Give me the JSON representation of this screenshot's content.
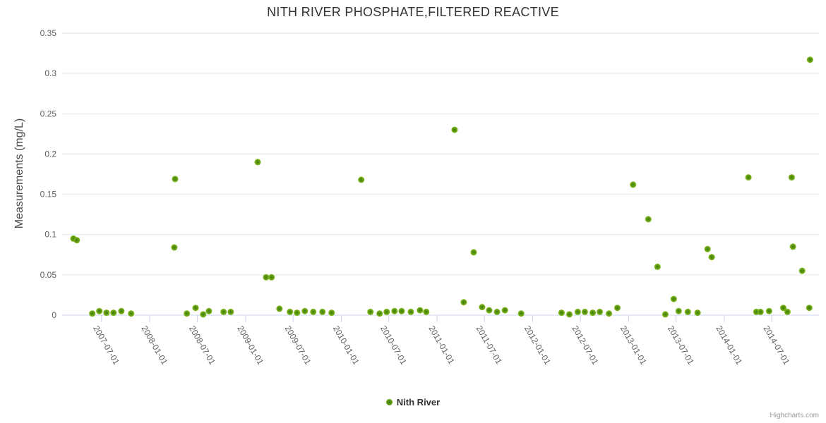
{
  "chart_data": {
    "type": "scatter",
    "title": "NITH RIVER PHOSPHATE,FILTERED REACTIVE",
    "xlabel": "",
    "ylabel": "Measurements (mg/L)",
    "grid": true,
    "legend_position": "bottom-center",
    "credits": "Highcharts.com",
    "colors": {
      "background": "#ffffff",
      "grid": "#e6e6e6",
      "axis_line": "#ccd6eb",
      "title": "#333333",
      "tick_label": "#606060",
      "marker": "#76b113",
      "marker_dark": "#3f7b0b",
      "legend_text": "#333333",
      "credits": "#999999"
    },
    "y_axis": {
      "min": 0,
      "max": 0.35,
      "tick_interval": 0.05,
      "tick_labels": [
        "0",
        "0.05",
        "0.1",
        "0.15",
        "0.2",
        "0.25",
        "0.3",
        "0.35"
      ]
    },
    "x_axis": {
      "min": "2007-02-01",
      "max": "2014-12-28",
      "ticks": [
        "2007-07-01",
        "2008-01-01",
        "2008-07-01",
        "2009-01-01",
        "2009-07-01",
        "2010-01-01",
        "2010-07-01",
        "2011-01-01",
        "2011-07-01",
        "2012-01-01",
        "2012-07-01",
        "2013-01-01",
        "2013-07-01",
        "2014-01-01",
        "2014-07-01"
      ]
    },
    "series": [
      {
        "name": "Nith River",
        "color": "#76b113",
        "points": [
          {
            "x": "2007-03-16",
            "y": 0.095
          },
          {
            "x": "2007-03-29",
            "y": 0.093
          },
          {
            "x": "2007-05-27",
            "y": 0.002
          },
          {
            "x": "2007-06-23",
            "y": 0.005
          },
          {
            "x": "2007-07-20",
            "y": 0.003
          },
          {
            "x": "2007-08-16",
            "y": 0.003
          },
          {
            "x": "2007-09-15",
            "y": 0.005
          },
          {
            "x": "2007-10-22",
            "y": 0.002
          },
          {
            "x": "2008-04-04",
            "y": 0.084
          },
          {
            "x": "2008-04-07",
            "y": 0.169
          },
          {
            "x": "2008-05-22",
            "y": 0.002
          },
          {
            "x": "2008-06-24",
            "y": 0.009
          },
          {
            "x": "2008-07-23",
            "y": 0.001
          },
          {
            "x": "2008-08-14",
            "y": 0.005
          },
          {
            "x": "2008-10-09",
            "y": 0.004
          },
          {
            "x": "2008-11-05",
            "y": 0.004
          },
          {
            "x": "2009-02-16",
            "y": 0.19
          },
          {
            "x": "2009-03-20",
            "y": 0.047
          },
          {
            "x": "2009-04-10",
            "y": 0.047
          },
          {
            "x": "2009-05-10",
            "y": 0.008
          },
          {
            "x": "2009-06-19",
            "y": 0.004
          },
          {
            "x": "2009-07-16",
            "y": 0.003
          },
          {
            "x": "2009-08-15",
            "y": 0.005
          },
          {
            "x": "2009-09-16",
            "y": 0.004
          },
          {
            "x": "2009-10-21",
            "y": 0.004
          },
          {
            "x": "2009-11-25",
            "y": 0.003
          },
          {
            "x": "2010-03-18",
            "y": 0.168
          },
          {
            "x": "2010-04-22",
            "y": 0.004
          },
          {
            "x": "2010-05-27",
            "y": 0.002
          },
          {
            "x": "2010-06-23",
            "y": 0.004
          },
          {
            "x": "2010-07-23",
            "y": 0.005
          },
          {
            "x": "2010-08-19",
            "y": 0.005
          },
          {
            "x": "2010-09-23",
            "y": 0.004
          },
          {
            "x": "2010-10-28",
            "y": 0.006
          },
          {
            "x": "2010-11-21",
            "y": 0.004
          },
          {
            "x": "2011-03-09",
            "y": 0.23
          },
          {
            "x": "2011-04-13",
            "y": 0.016
          },
          {
            "x": "2011-05-21",
            "y": 0.078
          },
          {
            "x": "2011-06-22",
            "y": 0.01
          },
          {
            "x": "2011-07-19",
            "y": 0.006
          },
          {
            "x": "2011-08-18",
            "y": 0.004
          },
          {
            "x": "2011-09-17",
            "y": 0.006
          },
          {
            "x": "2011-11-18",
            "y": 0.002
          },
          {
            "x": "2012-04-20",
            "y": 0.003
          },
          {
            "x": "2012-05-20",
            "y": 0.001
          },
          {
            "x": "2012-06-21",
            "y": 0.004
          },
          {
            "x": "2012-07-18",
            "y": 0.004
          },
          {
            "x": "2012-08-17",
            "y": 0.003
          },
          {
            "x": "2012-09-13",
            "y": 0.004
          },
          {
            "x": "2012-10-18",
            "y": 0.002
          },
          {
            "x": "2012-11-19",
            "y": 0.009
          },
          {
            "x": "2013-01-18",
            "y": 0.162
          },
          {
            "x": "2013-03-17",
            "y": 0.119
          },
          {
            "x": "2013-04-21",
            "y": 0.06
          },
          {
            "x": "2013-05-21",
            "y": 0.001
          },
          {
            "x": "2013-06-22",
            "y": 0.02
          },
          {
            "x": "2013-07-11",
            "y": 0.005
          },
          {
            "x": "2013-08-15",
            "y": 0.004
          },
          {
            "x": "2013-09-21",
            "y": 0.003
          },
          {
            "x": "2013-10-29",
            "y": 0.082
          },
          {
            "x": "2013-11-14",
            "y": 0.072
          },
          {
            "x": "2014-04-03",
            "y": 0.171
          },
          {
            "x": "2014-05-03",
            "y": 0.004
          },
          {
            "x": "2014-05-19",
            "y": 0.004
          },
          {
            "x": "2014-06-21",
            "y": 0.005
          },
          {
            "x": "2014-08-14",
            "y": 0.009
          },
          {
            "x": "2014-08-30",
            "y": 0.004
          },
          {
            "x": "2014-09-15",
            "y": 0.171
          },
          {
            "x": "2014-09-20",
            "y": 0.085
          },
          {
            "x": "2014-10-25",
            "y": 0.055
          },
          {
            "x": "2014-11-21",
            "y": 0.009
          },
          {
            "x": "2014-11-24",
            "y": 0.317
          }
        ]
      }
    ]
  }
}
